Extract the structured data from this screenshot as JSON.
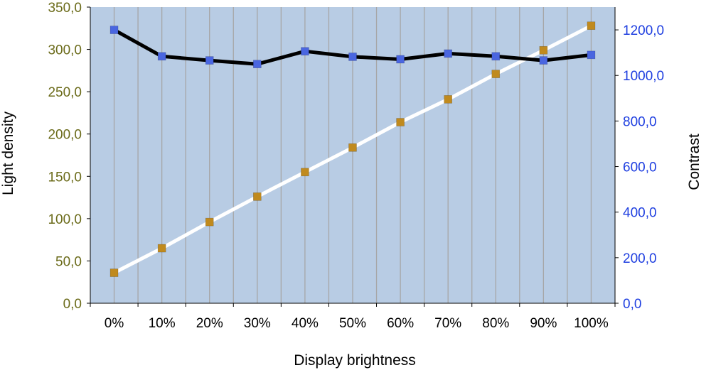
{
  "chart_data": {
    "type": "line",
    "title": "",
    "xlabel": "Display brightness",
    "ylabel_left": "Light density",
    "ylabel_right": "Contrast",
    "categories": [
      "0%",
      "10%",
      "20%",
      "30%",
      "40%",
      "50%",
      "60%",
      "70%",
      "80%",
      "90%",
      "100%"
    ],
    "ylim_left": [
      0,
      350
    ],
    "ylim_right": [
      0,
      1300
    ],
    "left_ticks": [
      0,
      50,
      100,
      150,
      200,
      250,
      300,
      350
    ],
    "left_tick_labels": [
      "0,0",
      "50,0",
      "100,0",
      "150,0",
      "200,0",
      "250,0",
      "300,0",
      "350,0"
    ],
    "right_ticks": [
      0,
      200,
      400,
      600,
      800,
      1000,
      1200
    ],
    "right_tick_labels": [
      "0,0",
      "200,0",
      "400,0",
      "600,0",
      "800,0",
      "1000,0",
      "1200,0"
    ],
    "grid": "vertical",
    "series": [
      {
        "axis": "left",
        "line_color": "#ffffff",
        "marker_color": "#c08a1e",
        "values": [
          36,
          65,
          96,
          126,
          155,
          184,
          214,
          241,
          271,
          299,
          328
        ]
      },
      {
        "axis": "right",
        "line_color": "#000000",
        "marker_color": "#4a66e0",
        "values": [
          1200,
          1084,
          1066,
          1050,
          1106,
          1082,
          1071,
          1096,
          1084,
          1066,
          1090
        ]
      }
    ],
    "colors": {
      "plot_background": "#b8cce4",
      "grid_line": "#a6a6a6",
      "left_axis_text": "#6b6b1a",
      "right_axis_text": "#1f3fe0"
    }
  }
}
